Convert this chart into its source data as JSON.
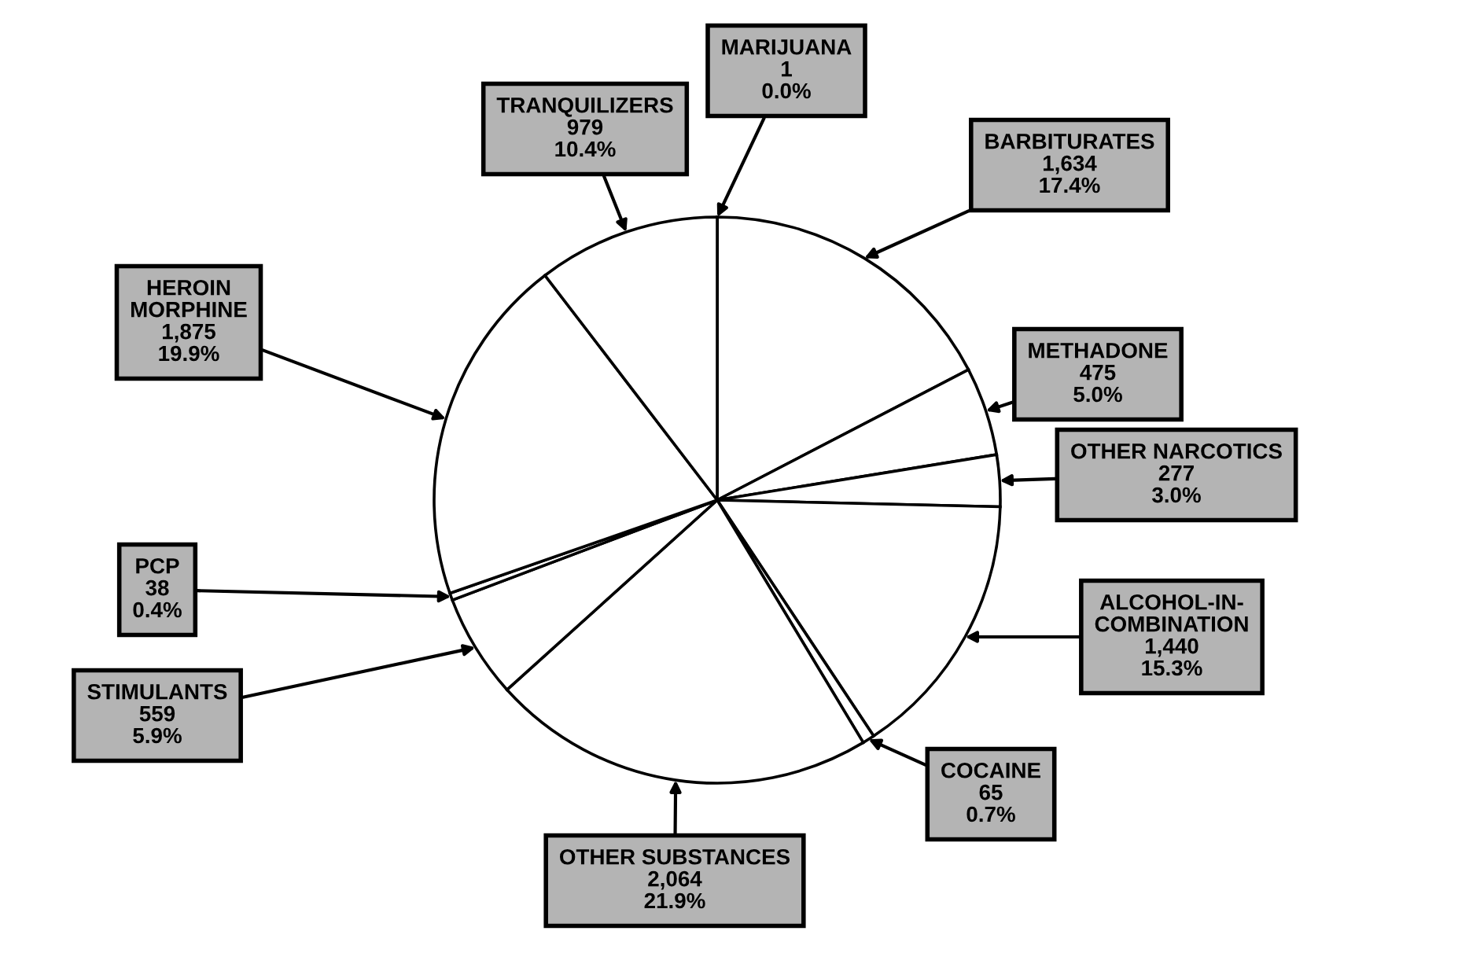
{
  "chart_data": {
    "type": "pie",
    "categories": [
      "MARIJUANA",
      "BARBITURATES",
      "METHADONE",
      "OTHER NARCOTICS",
      "ALCOHOL-IN-\nCOMBINATION",
      "COCAINE",
      "OTHER SUBSTANCES",
      "STIMULANTS",
      "PCP",
      "HEROIN\nMORPHINE",
      "TRANQUILIZERS"
    ],
    "values": [
      1,
      1634,
      475,
      277,
      1440,
      65,
      2064,
      559,
      38,
      1875,
      979
    ],
    "value_labels": [
      "1\n0.0%",
      "1,634\n17.4%",
      "475\n5.0%",
      "277\n3.0%",
      "1,440\n15.3%",
      "65\n0.7%",
      "2,064\n21.9%",
      "559\n5.9%",
      "38\n0.4%",
      "1,875\n19.9%",
      "979\n10.4%"
    ],
    "colors": [
      "#ffffff",
      "#ffffff",
      "#ffffff",
      "#ffffff",
      "#ffffff",
      "#ffffff",
      "#ffffff",
      "#ffffff",
      "#ffffff",
      "#ffffff",
      "#ffffff"
    ]
  }
}
